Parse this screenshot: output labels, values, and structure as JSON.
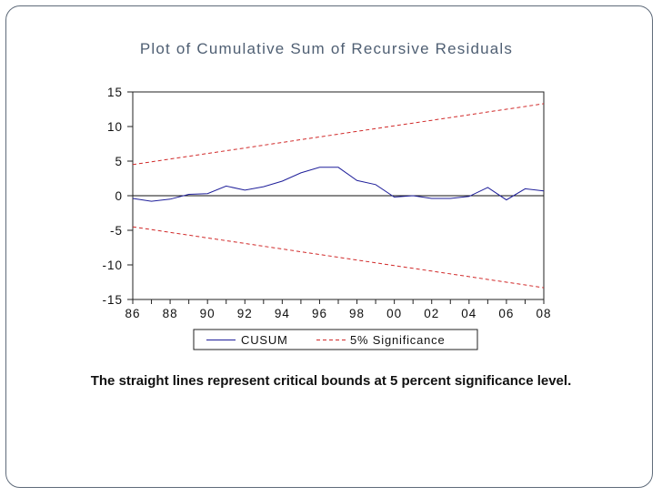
{
  "chart_data": {
    "type": "line",
    "title": "Plot of Cumulative Sum of Recursive Residuals",
    "xlabel": "",
    "ylabel": "",
    "x": [
      1986,
      1987,
      1988,
      1989,
      1990,
      1991,
      1992,
      1993,
      1994,
      1995,
      1996,
      1997,
      1998,
      1999,
      2000,
      2001,
      2002,
      2003,
      2004,
      2005,
      2006,
      2007,
      2008
    ],
    "x_tick_labels": [
      "86",
      "88",
      "90",
      "92",
      "94",
      "96",
      "98",
      "00",
      "02",
      "04",
      "06",
      "08"
    ],
    "x_tick_values": [
      1986,
      1988,
      1990,
      1992,
      1994,
      1996,
      1998,
      2000,
      2002,
      2004,
      2006,
      2008
    ],
    "xlim": [
      1986,
      2008
    ],
    "y_tick_labels": [
      "15",
      "10",
      "5",
      "0",
      "-5",
      "-10",
      "-15"
    ],
    "y_tick_values": [
      15,
      10,
      5,
      0,
      -5,
      -10,
      -15
    ],
    "ylim": [
      -15,
      15
    ],
    "zero_line": true,
    "series": [
      {
        "name": "CUSUM",
        "color": "#1f1f9a",
        "style": "solid",
        "values": [
          -0.4,
          -0.8,
          -0.5,
          0.2,
          0.3,
          1.4,
          0.8,
          1.3,
          2.1,
          3.3,
          4.1,
          4.1,
          2.2,
          1.6,
          -0.2,
          0.0,
          -0.4,
          -0.4,
          -0.1,
          1.2,
          -0.6,
          1.0,
          0.7
        ]
      },
      {
        "name": "5% Significance",
        "color": "#d12a2a",
        "style": "dashed",
        "values": [
          4.5,
          4.9,
          5.3,
          5.7,
          6.1,
          6.5,
          6.9,
          7.3,
          7.7,
          8.1,
          8.5,
          8.9,
          9.3,
          9.7,
          10.1,
          10.5,
          10.9,
          11.3,
          11.7,
          12.1,
          12.5,
          12.9,
          13.3
        ]
      },
      {
        "name": "5% Significance lower",
        "color": "#d12a2a",
        "style": "dashed",
        "legend": false,
        "values": [
          -4.5,
          -4.9,
          -5.3,
          -5.7,
          -6.1,
          -6.5,
          -6.9,
          -7.3,
          -7.7,
          -8.1,
          -8.5,
          -8.9,
          -9.3,
          -9.7,
          -10.1,
          -10.5,
          -10.9,
          -11.3,
          -11.7,
          -12.1,
          -12.5,
          -12.9,
          -13.3
        ]
      }
    ],
    "legend": {
      "placement": "bottom-center",
      "entries": [
        "CUSUM",
        "5% Significance"
      ]
    }
  },
  "caption": "The straight lines represent critical bounds at 5 percent significance level."
}
